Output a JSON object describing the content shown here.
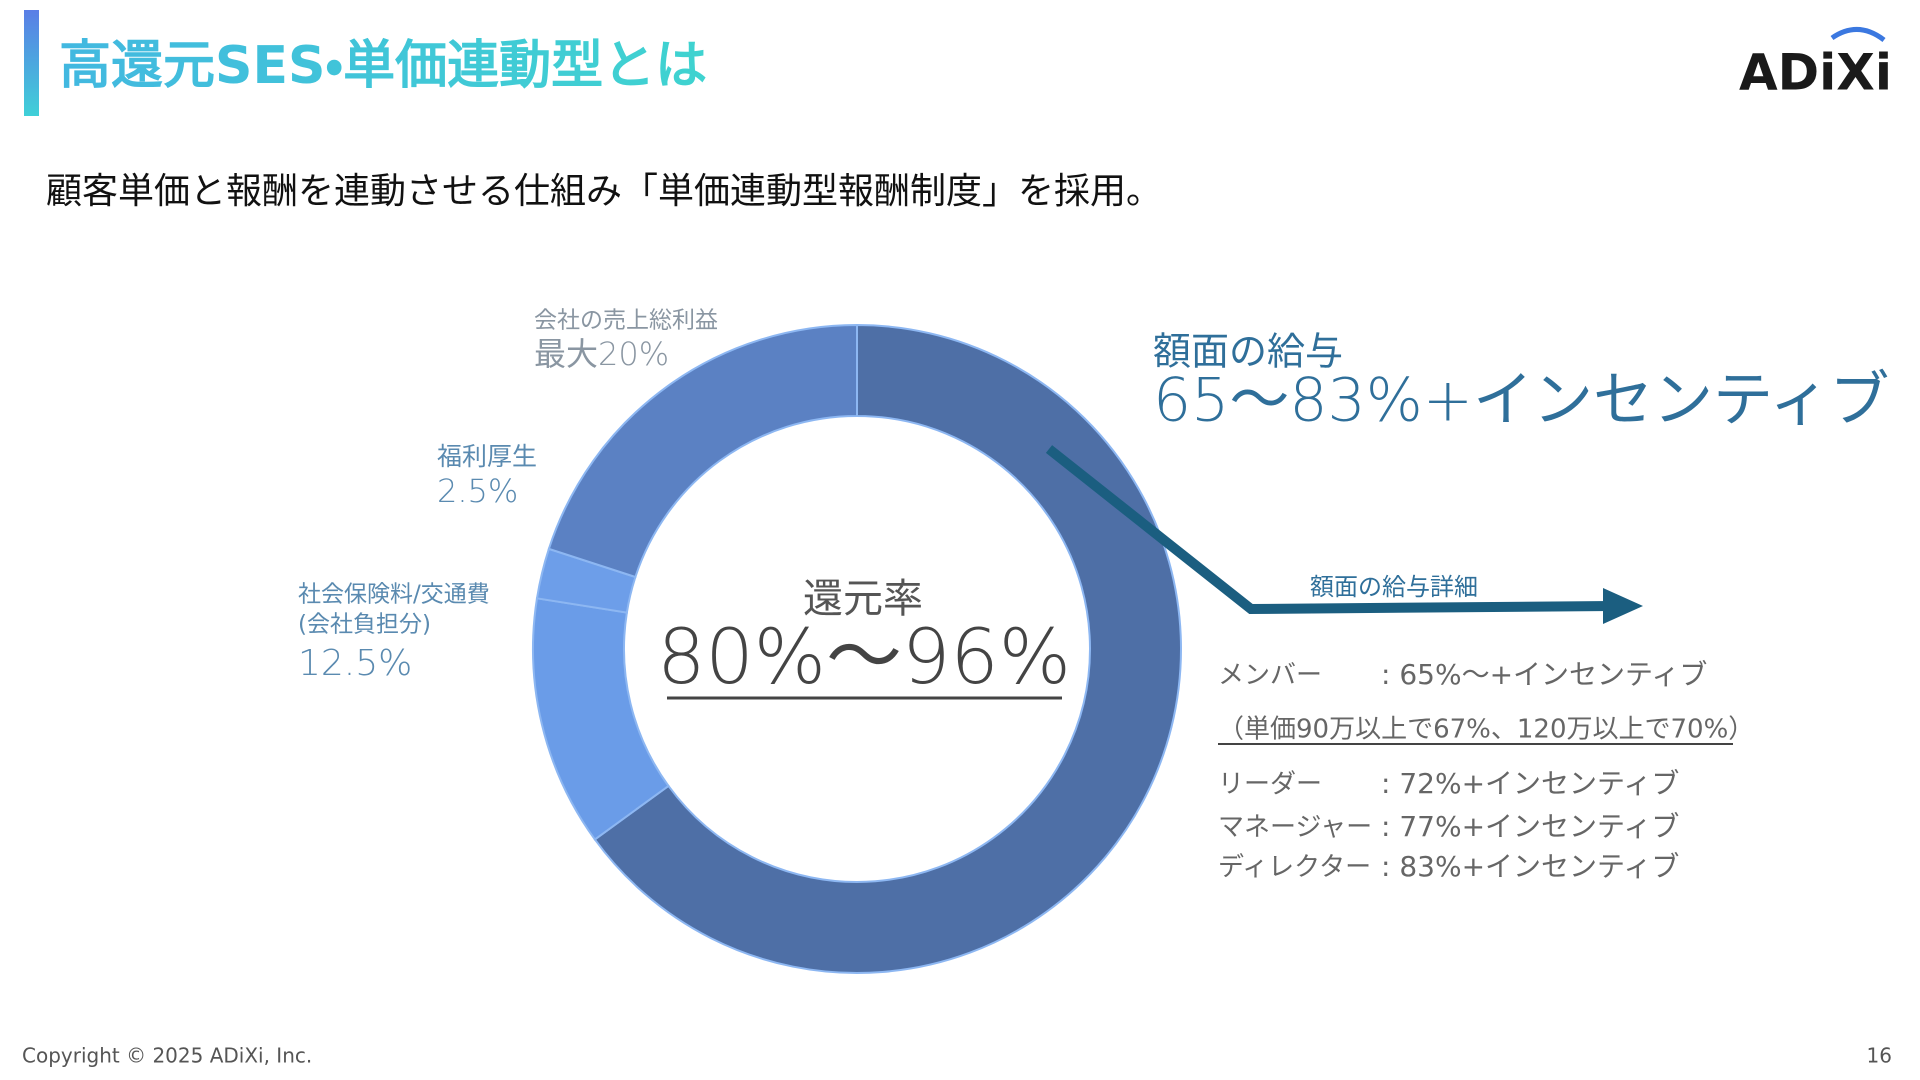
{
  "header": {
    "title": "高還元SES・単価連動型とは",
    "logo": "ADiXi",
    "subtitle": "顧客単価と報酬を連動させる仕組み「単価連動型報酬制度」を採用。"
  },
  "chart_data": {
    "type": "donut",
    "categories": [
      "額面の給与",
      "社会保険料/交通費",
      "福利厚生",
      "会社の売上総利益"
    ],
    "category_note": "(会社負担分)",
    "values": [
      65,
      12.5,
      2.5,
      20
    ],
    "value_labels": [
      "65〜83%+インセンティブ",
      "12.5%",
      "2.5%",
      "最大20%"
    ],
    "colors": [
      "#4e6fa6",
      "#6a9ce8",
      "#6d9ee9",
      "#5b81c3"
    ],
    "center_title": "還元率",
    "center_value": "80%〜96%"
  },
  "detail": {
    "title": "額面の給与詳細",
    "rows": [
      {
        "role": "メンバー",
        "text": ": 65%〜+インセンティブ"
      },
      {
        "role": "（単価90万以上で67%、120万以上で70%）",
        "text": null
      },
      {
        "role": "リーダー",
        "text": ": 72%+インセンティブ"
      },
      {
        "role": "マネージャー",
        "text": ": 77%+インセンティブ"
      },
      {
        "role": "ディレクター",
        "text": ": 83%+インセンティブ"
      }
    ]
  },
  "footer": {
    "copyright": "Copyright © 2025 ADiXi, Inc.",
    "page": "16"
  }
}
